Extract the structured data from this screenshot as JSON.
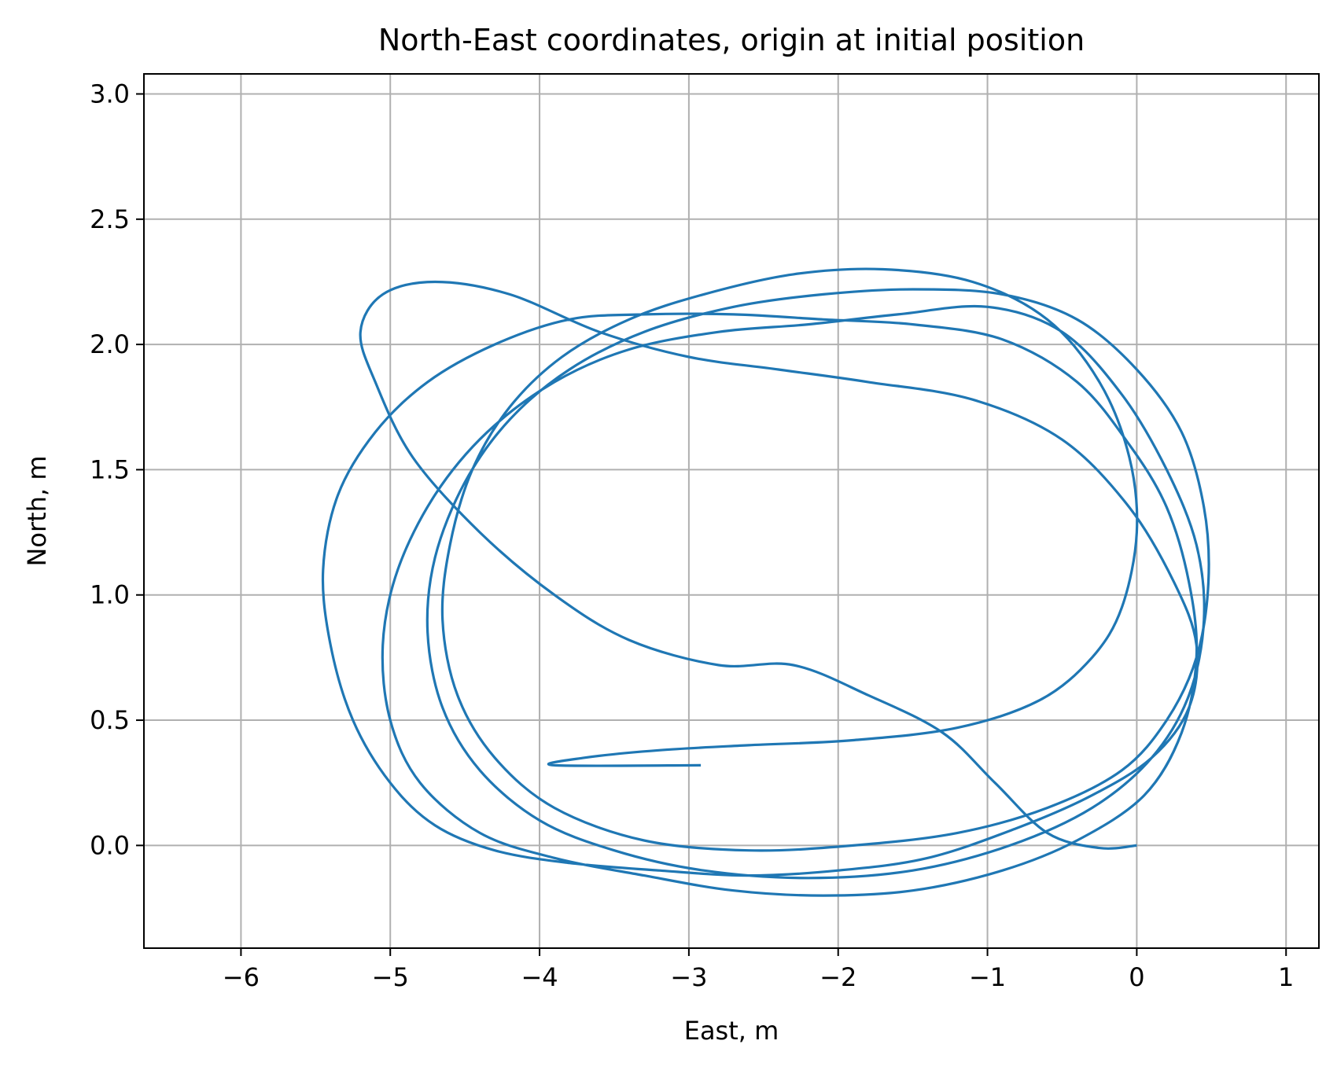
{
  "chart_data": {
    "type": "line",
    "title": "North-East coordinates, origin at initial position",
    "xlabel": "East, m",
    "ylabel": "North, m",
    "xlim": [
      -6.65,
      1.22
    ],
    "ylim": [
      -0.41,
      3.08
    ],
    "xticks": [
      -6,
      -5,
      -4,
      -3,
      -2,
      -1,
      0,
      1
    ],
    "xtick_labels": [
      "−6",
      "−5",
      "−4",
      "−3",
      "−2",
      "−1",
      "0",
      "1"
    ],
    "yticks": [
      0.0,
      0.5,
      1.0,
      1.5,
      2.0,
      2.5,
      3.0
    ],
    "ytick_labels": [
      "0.0",
      "0.5",
      "1.0",
      "1.5",
      "2.0",
      "2.5",
      "3.0"
    ],
    "grid": true,
    "legend": "none",
    "series": [
      {
        "color": "#1f77b4",
        "points": [
          [
            0.0,
            0.0
          ],
          [
            -0.25,
            -0.01
          ],
          [
            -0.6,
            0.05
          ],
          [
            -0.95,
            0.25
          ],
          [
            -1.3,
            0.45
          ],
          [
            -1.8,
            0.6
          ],
          [
            -2.3,
            0.72
          ],
          [
            -2.8,
            0.72
          ],
          [
            -3.4,
            0.82
          ],
          [
            -3.9,
            1.0
          ],
          [
            -4.4,
            1.25
          ],
          [
            -4.85,
            1.55
          ],
          [
            -5.1,
            1.85
          ],
          [
            -5.2,
            2.05
          ],
          [
            -5.05,
            2.2
          ],
          [
            -4.7,
            2.25
          ],
          [
            -4.2,
            2.2
          ],
          [
            -3.6,
            2.05
          ],
          [
            -3.0,
            1.95
          ],
          [
            -2.4,
            1.9
          ],
          [
            -1.8,
            1.85
          ],
          [
            -1.1,
            1.78
          ],
          [
            -0.5,
            1.62
          ],
          [
            -0.05,
            1.35
          ],
          [
            0.25,
            1.05
          ],
          [
            0.4,
            0.8
          ],
          [
            0.35,
            0.55
          ],
          [
            0.1,
            0.35
          ],
          [
            -0.3,
            0.2
          ],
          [
            -0.8,
            0.07
          ],
          [
            -1.4,
            -0.05
          ],
          [
            -2.0,
            -0.1
          ],
          [
            -2.6,
            -0.12
          ],
          [
            -3.2,
            -0.1
          ],
          [
            -3.8,
            -0.07
          ],
          [
            -4.3,
            -0.02
          ],
          [
            -4.7,
            0.08
          ],
          [
            -5.0,
            0.25
          ],
          [
            -5.25,
            0.5
          ],
          [
            -5.4,
            0.8
          ],
          [
            -5.45,
            1.1
          ],
          [
            -5.35,
            1.4
          ],
          [
            -5.1,
            1.65
          ],
          [
            -4.75,
            1.85
          ],
          [
            -4.3,
            2.0
          ],
          [
            -3.8,
            2.1
          ],
          [
            -3.3,
            2.12
          ],
          [
            -2.7,
            2.12
          ],
          [
            -2.1,
            2.1
          ],
          [
            -1.5,
            2.08
          ],
          [
            -0.9,
            2.02
          ],
          [
            -0.4,
            1.85
          ],
          [
            -0.05,
            1.6
          ],
          [
            0.2,
            1.35
          ],
          [
            0.35,
            1.05
          ],
          [
            0.4,
            0.75
          ],
          [
            0.3,
            0.45
          ],
          [
            0.05,
            0.2
          ],
          [
            -0.4,
            0.02
          ],
          [
            -0.9,
            -0.1
          ],
          [
            -1.5,
            -0.18
          ],
          [
            -2.1,
            -0.2
          ],
          [
            -2.7,
            -0.18
          ],
          [
            -3.3,
            -0.12
          ],
          [
            -3.9,
            -0.05
          ],
          [
            -4.4,
            0.05
          ],
          [
            -4.8,
            0.25
          ],
          [
            -5.0,
            0.5
          ],
          [
            -5.05,
            0.8
          ],
          [
            -4.95,
            1.1
          ],
          [
            -4.7,
            1.4
          ],
          [
            -4.35,
            1.65
          ],
          [
            -3.9,
            1.85
          ],
          [
            -3.4,
            1.98
          ],
          [
            -2.8,
            2.05
          ],
          [
            -2.2,
            2.08
          ],
          [
            -1.6,
            2.12
          ],
          [
            -1.0,
            2.15
          ],
          [
            -0.5,
            2.05
          ],
          [
            -0.1,
            1.8
          ],
          [
            0.2,
            1.5
          ],
          [
            0.4,
            1.2
          ],
          [
            0.45,
            0.9
          ],
          [
            0.35,
            0.6
          ],
          [
            0.1,
            0.35
          ],
          [
            -0.3,
            0.15
          ],
          [
            -0.85,
            0.0
          ],
          [
            -1.5,
            -0.1
          ],
          [
            -2.2,
            -0.13
          ],
          [
            -2.9,
            -0.1
          ],
          [
            -3.5,
            -0.02
          ],
          [
            -4.0,
            0.1
          ],
          [
            -4.4,
            0.3
          ],
          [
            -4.65,
            0.55
          ],
          [
            -4.75,
            0.85
          ],
          [
            -4.7,
            1.15
          ],
          [
            -4.5,
            1.45
          ],
          [
            -4.2,
            1.7
          ],
          [
            -3.8,
            1.9
          ],
          [
            -3.3,
            2.05
          ],
          [
            -2.7,
            2.15
          ],
          [
            -2.1,
            2.2
          ],
          [
            -1.5,
            2.22
          ],
          [
            -0.9,
            2.2
          ],
          [
            -0.4,
            2.1
          ],
          [
            0.0,
            1.9
          ],
          [
            0.3,
            1.65
          ],
          [
            0.45,
            1.35
          ],
          [
            0.48,
            1.05
          ],
          [
            0.4,
            0.75
          ],
          [
            0.2,
            0.5
          ],
          [
            -0.1,
            0.3
          ],
          [
            -0.6,
            0.15
          ],
          [
            -1.2,
            0.05
          ],
          [
            -1.9,
            0.0
          ],
          [
            -2.6,
            -0.02
          ],
          [
            -3.3,
            0.02
          ],
          [
            -3.9,
            0.15
          ],
          [
            -4.3,
            0.35
          ],
          [
            -4.55,
            0.6
          ],
          [
            -4.65,
            0.9
          ],
          [
            -4.6,
            1.2
          ],
          [
            -4.45,
            1.5
          ],
          [
            -4.2,
            1.75
          ],
          [
            -3.85,
            1.95
          ],
          [
            -3.4,
            2.1
          ],
          [
            -2.9,
            2.2
          ],
          [
            -2.3,
            2.28
          ],
          [
            -1.7,
            2.3
          ],
          [
            -1.1,
            2.25
          ],
          [
            -0.6,
            2.1
          ],
          [
            -0.25,
            1.85
          ],
          [
            -0.05,
            1.55
          ],
          [
            0.0,
            1.25
          ],
          [
            -0.1,
            0.95
          ],
          [
            -0.3,
            0.75
          ],
          [
            -0.65,
            0.58
          ],
          [
            -1.2,
            0.47
          ],
          [
            -1.9,
            0.42
          ],
          [
            -2.6,
            0.4
          ],
          [
            -3.2,
            0.38
          ],
          [
            -3.7,
            0.35
          ],
          [
            -3.9,
            0.32
          ],
          [
            -2.92,
            0.32
          ]
        ]
      }
    ]
  }
}
